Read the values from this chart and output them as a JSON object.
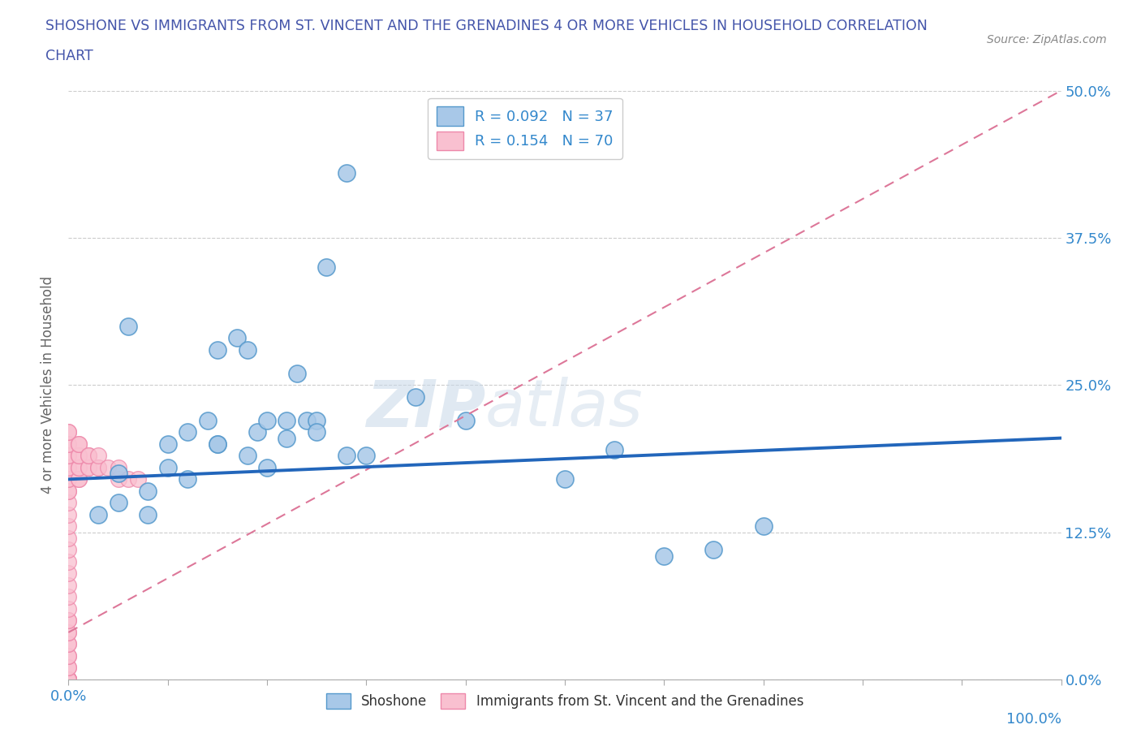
{
  "title_line1": "SHOSHONE VS IMMIGRANTS FROM ST. VINCENT AND THE GRENADINES 4 OR MORE VEHICLES IN HOUSEHOLD CORRELATION",
  "title_line2": "CHART",
  "source_text": "Source: ZipAtlas.com",
  "ylabel": "4 or more Vehicles in Household",
  "xlim": [
    0,
    100
  ],
  "ylim": [
    0,
    50
  ],
  "y_tick_values": [
    0,
    12.5,
    25.0,
    37.5,
    50.0
  ],
  "x_tick_positions": [
    0,
    10,
    20,
    30,
    40,
    50,
    60,
    70,
    80,
    90,
    100
  ],
  "grid_color": "#cccccc",
  "background_color": "#ffffff",
  "shoshone_color": "#a8c8e8",
  "shoshone_edge_color": "#5599cc",
  "immigrants_color": "#f9c0d0",
  "immigrants_edge_color": "#ee88aa",
  "shoshone_R": 0.092,
  "shoshone_N": 37,
  "immigrants_R": 0.154,
  "immigrants_N": 70,
  "legend_label_1": "Shoshone",
  "legend_label_2": "Immigrants from St. Vincent and the Grenadines",
  "shoshone_scatter_x": [
    5,
    8,
    10,
    12,
    14,
    15,
    17,
    18,
    19,
    20,
    22,
    23,
    24,
    25,
    26,
    28,
    30,
    35,
    40,
    50,
    55,
    60,
    65,
    70,
    3,
    5,
    8,
    10,
    12,
    15,
    18,
    20,
    22,
    25,
    28,
    6,
    15
  ],
  "shoshone_scatter_y": [
    17.5,
    16,
    20,
    21,
    22,
    20,
    29,
    28,
    21,
    22,
    22,
    26,
    22,
    22,
    35,
    43,
    19,
    24,
    22,
    17,
    19.5,
    10.5,
    11,
    13,
    14,
    15,
    14,
    18,
    17,
    20,
    19,
    18,
    20.5,
    21,
    19,
    30,
    28
  ],
  "immigrants_scatter_x": [
    0,
    0,
    0,
    0,
    0,
    0,
    0,
    0,
    0,
    0,
    0,
    0,
    0,
    0,
    0,
    0,
    0,
    0,
    0,
    0,
    0,
    0,
    0,
    0,
    0,
    0,
    0,
    0,
    0,
    0,
    0,
    0,
    0,
    0,
    0,
    0,
    0,
    0,
    0,
    0,
    0,
    0,
    0,
    0,
    0,
    0,
    0,
    0,
    0,
    0,
    1,
    1,
    1,
    1,
    1,
    1,
    1,
    1,
    2,
    2,
    2,
    2,
    3,
    3,
    3,
    4,
    5,
    5,
    6,
    7
  ],
  "immigrants_scatter_y": [
    0,
    0,
    0,
    0,
    0,
    0,
    0,
    0,
    0,
    0,
    0,
    0,
    0,
    0,
    0,
    0,
    0,
    0,
    1,
    1,
    2,
    2,
    3,
    3,
    4,
    4,
    5,
    5,
    6,
    7,
    8,
    9,
    10,
    11,
    12,
    13,
    14,
    15,
    16,
    16,
    17,
    17,
    18,
    18,
    19,
    19,
    20,
    20,
    21,
    21,
    17,
    17,
    18,
    18,
    19,
    19,
    20,
    20,
    18,
    18,
    19,
    19,
    18,
    18,
    19,
    18,
    17,
    18,
    17,
    17
  ],
  "watermark_text_zip": "ZIP",
  "watermark_text_atlas": "atlas",
  "title_color": "#4455aa",
  "axis_label_color": "#666666",
  "tick_label_color": "#3388cc",
  "regression_shoshone_color": "#2266bb",
  "regression_immigrants_color": "#dd7799",
  "shoshone_reg_x0": 0,
  "shoshone_reg_y0": 17.0,
  "shoshone_reg_x1": 100,
  "shoshone_reg_y1": 20.5,
  "immigrants_reg_x0": 0,
  "immigrants_reg_y0": 4.0,
  "immigrants_reg_x1": 100,
  "immigrants_reg_y1": 50.0
}
